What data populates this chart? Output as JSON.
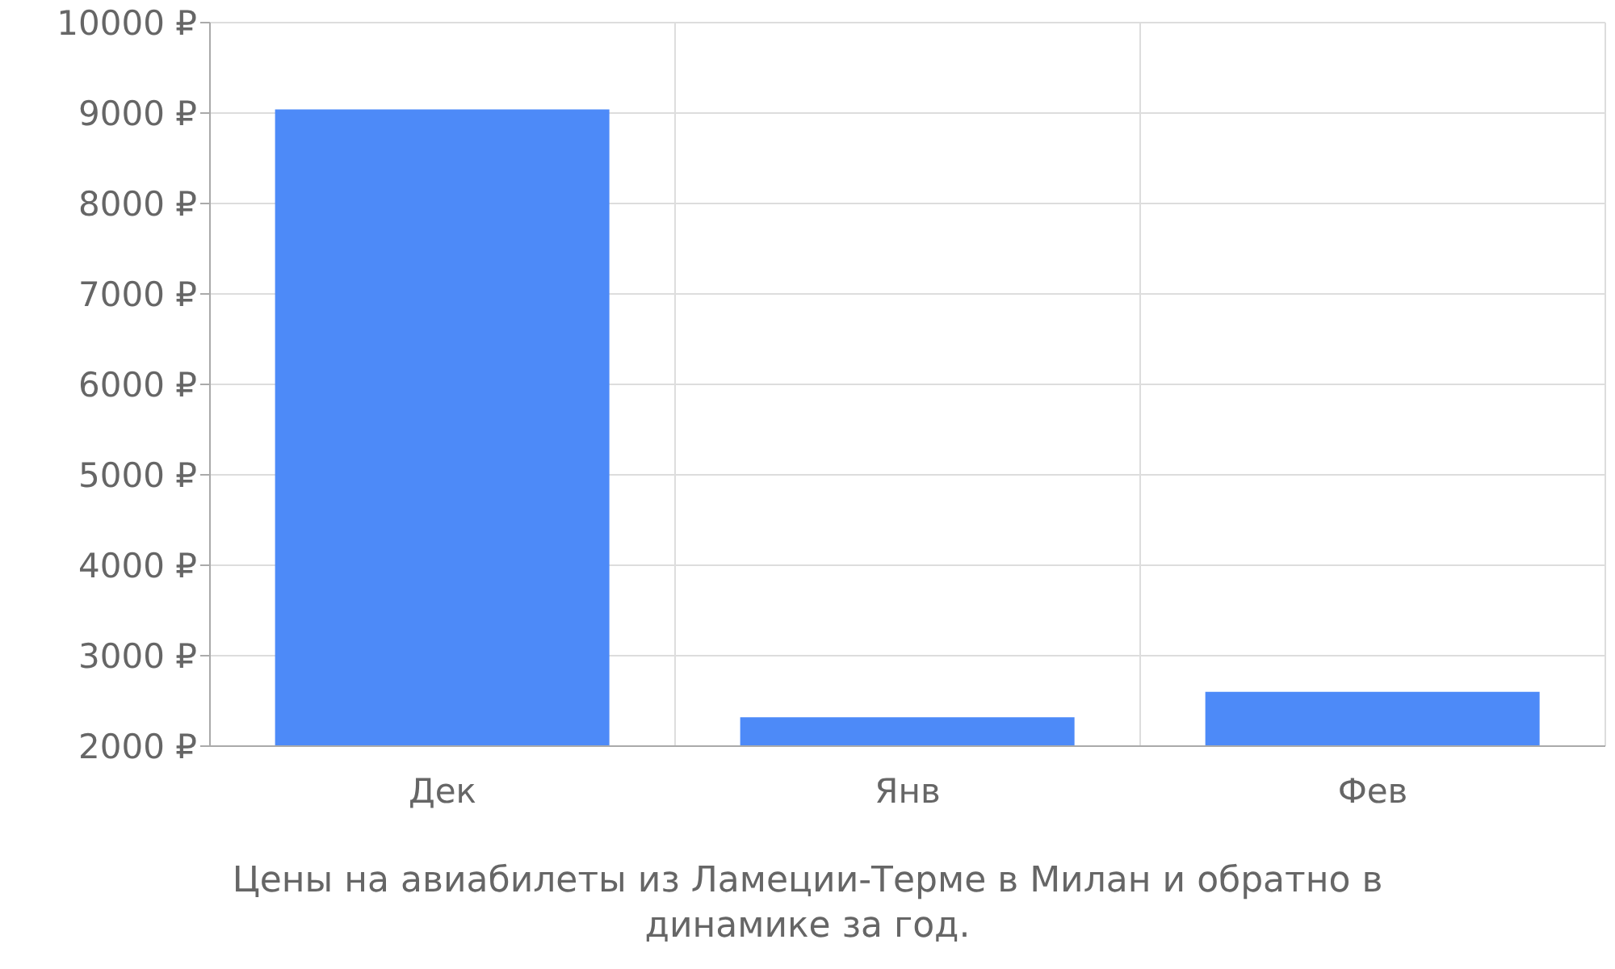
{
  "chart_data": {
    "type": "bar",
    "categories": [
      "Дек",
      "Янв",
      "Фев"
    ],
    "values": [
      9040,
      2320,
      2600
    ],
    "color": "#4d8af8",
    "ylim": [
      2000,
      10000
    ],
    "yticks": [
      {
        "value": 2000,
        "label": "2000 ₽"
      },
      {
        "value": 3000,
        "label": "3000 ₽"
      },
      {
        "value": 4000,
        "label": "4000 ₽"
      },
      {
        "value": 5000,
        "label": "5000 ₽"
      },
      {
        "value": 6000,
        "label": "6000 ₽"
      },
      {
        "value": 7000,
        "label": "7000 ₽"
      },
      {
        "value": 8000,
        "label": "8000 ₽"
      },
      {
        "value": 9000,
        "label": "9000 ₽"
      },
      {
        "value": 10000,
        "label": "10000 ₽"
      }
    ],
    "grid": true,
    "annotations": [
      "Цены на авиабилеты из Ламеции-Терме в Милан и обратно в динамике за год."
    ]
  }
}
